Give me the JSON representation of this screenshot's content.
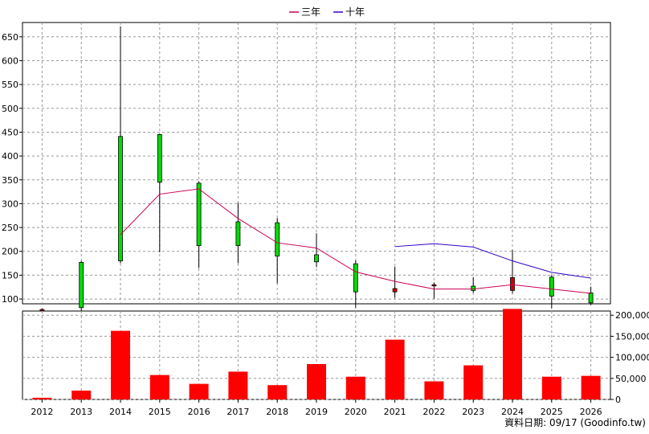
{
  "chart_data": {
    "type": "candlestick+bar",
    "legend": [
      {
        "name": "三年",
        "color": "#cc0055"
      },
      {
        "name": "十年",
        "color": "#3300cc"
      }
    ],
    "x": [
      "2012",
      "2013",
      "2014",
      "2015",
      "2016",
      "2017",
      "2018",
      "2019",
      "2020",
      "2021",
      "2022",
      "2023",
      "2024",
      "2025",
      "2026"
    ],
    "price": {
      "ylim": [
        90,
        680
      ],
      "yticks": [
        100,
        150,
        200,
        250,
        300,
        350,
        400,
        450,
        500,
        550,
        600,
        650
      ],
      "candles": [
        {
          "open": 78,
          "close": 75,
          "high": 81,
          "low": 72
        },
        {
          "open": 82,
          "close": 177,
          "high": 180,
          "low": 73
        },
        {
          "open": 180,
          "close": 441,
          "high": 672,
          "low": 175
        },
        {
          "open": 345,
          "close": 445,
          "high": 447,
          "low": 198
        },
        {
          "open": 212,
          "close": 343,
          "high": 347,
          "low": 165
        },
        {
          "open": 212,
          "close": 262,
          "high": 302,
          "low": 175
        },
        {
          "open": 190,
          "close": 260,
          "high": 270,
          "low": 133
        },
        {
          "open": 178,
          "close": 193,
          "high": 238,
          "low": 167
        },
        {
          "open": 115,
          "close": 174,
          "high": 181,
          "low": 81
        },
        {
          "open": 122,
          "close": 115,
          "high": 168,
          "low": 103
        },
        {
          "open": 130,
          "close": 128,
          "high": 135,
          "low": 101
        },
        {
          "open": 118,
          "close": 127,
          "high": 146,
          "low": 113
        },
        {
          "open": 145,
          "close": 118,
          "high": 203,
          "low": 112
        },
        {
          "open": 106,
          "close": 146,
          "high": 150,
          "low": 80
        },
        {
          "open": 92,
          "close": 113,
          "high": 126,
          "low": 87
        }
      ],
      "series": [
        {
          "name": "三年",
          "start_index": 2,
          "values": [
            235,
            320,
            331,
            269,
            218,
            207,
            157,
            137,
            121,
            121,
            130,
            121,
            112
          ]
        },
        {
          "name": "十年",
          "start_index": 9,
          "values": [
            210,
            216,
            209,
            180,
            156,
            144
          ]
        }
      ]
    },
    "volume": {
      "ylim": [
        0,
        210000
      ],
      "yticks": [
        0,
        50000,
        100000,
        150000,
        200000
      ],
      "ytick_labels": [
        "0",
        "50,000",
        "100,000",
        "150,000",
        "200,000"
      ],
      "values": [
        4000,
        21000,
        163000,
        58000,
        37000,
        66000,
        34000,
        84000,
        54000,
        142000,
        43000,
        81000,
        215000,
        54000,
        56000
      ],
      "color": "#ff0000"
    },
    "up_color": "#00dd00",
    "down_color": "#cc0000",
    "grid": true
  },
  "credit": "資料日期: 09/17  (Goodinfo.tw)"
}
